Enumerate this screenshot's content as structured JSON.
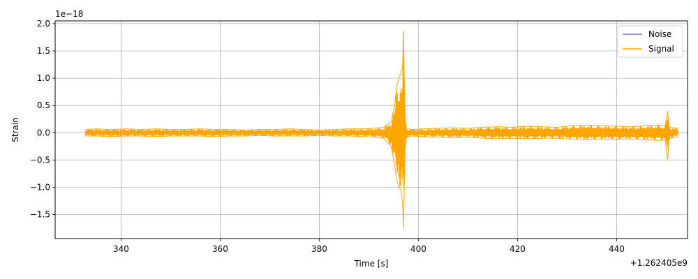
{
  "chart_data": {
    "type": "line",
    "title": "",
    "xlabel": "Time [s]",
    "ylabel": "Strain",
    "x_offset_label": "+1.262405e9",
    "y_scale_label": "1e−18",
    "xlim": [
      326.7,
      454.3
    ],
    "ylim": [
      -1.94,
      2.05
    ],
    "x_ticks": [
      340,
      360,
      380,
      400,
      420,
      440
    ],
    "x_tick_labels": [
      "340",
      "360",
      "380",
      "400",
      "420",
      "440"
    ],
    "y_ticks": [
      -1.5,
      -1.0,
      -0.5,
      0.0,
      0.5,
      1.0,
      1.5,
      2.0
    ],
    "y_tick_labels": [
      "−1.5",
      "−1.0",
      "−0.5",
      "0.0",
      "0.5",
      "1.0",
      "1.5",
      "2.0"
    ],
    "grid": true,
    "legend_position": "top-right",
    "series": [
      {
        "name": "Noise",
        "color": "#7575ff",
        "x": [],
        "y": []
      },
      {
        "name": "Signal",
        "color": "#ffa500",
        "x": [
          332.8,
          335,
          338,
          341,
          344,
          347,
          350,
          353,
          356,
          359,
          362,
          365,
          368,
          371,
          374,
          377,
          380,
          383,
          386,
          389,
          391,
          393,
          394.5,
          395.2,
          395.7,
          396.1,
          396.5,
          396.8,
          397.0,
          397.1,
          397.3,
          397.6,
          398.5,
          401,
          404,
          407,
          410,
          413,
          416,
          419,
          422,
          425,
          428,
          431,
          434,
          437,
          440,
          443,
          446,
          448.5,
          449.8,
          450.3,
          450.5,
          450.8,
          451.5,
          452.4
        ],
        "y_upper": [
          0.06,
          0.07,
          0.06,
          0.07,
          0.06,
          0.07,
          0.06,
          0.06,
          0.07,
          0.06,
          0.06,
          0.05,
          0.06,
          0.06,
          0.07,
          0.06,
          0.05,
          0.06,
          0.07,
          0.07,
          0.08,
          0.1,
          0.2,
          0.5,
          0.9,
          1.0,
          1.1,
          1.2,
          1.87,
          1.2,
          0.3,
          0.08,
          0.06,
          0.07,
          0.08,
          0.09,
          0.08,
          0.1,
          0.11,
          0.1,
          0.12,
          0.11,
          0.1,
          0.13,
          0.14,
          0.13,
          0.12,
          0.11,
          0.13,
          0.14,
          0.12,
          0.4,
          0.15,
          0.1,
          0.09,
          0.08
        ],
        "y_lower": [
          -0.06,
          -0.06,
          -0.07,
          -0.06,
          -0.06,
          -0.07,
          -0.06,
          -0.06,
          -0.06,
          -0.07,
          -0.06,
          -0.06,
          -0.05,
          -0.06,
          -0.06,
          -0.06,
          -0.05,
          -0.06,
          -0.06,
          -0.07,
          -0.08,
          -0.1,
          -0.25,
          -0.6,
          -0.9,
          -1.0,
          -1.05,
          -1.3,
          -1.75,
          -1.2,
          -0.3,
          -0.08,
          -0.06,
          -0.07,
          -0.08,
          -0.09,
          -0.08,
          -0.1,
          -0.11,
          -0.1,
          -0.11,
          -0.1,
          -0.1,
          -0.12,
          -0.13,
          -0.12,
          -0.12,
          -0.12,
          -0.13,
          -0.14,
          -0.13,
          -0.5,
          -0.15,
          -0.1,
          -0.09,
          -0.08
        ]
      }
    ]
  },
  "colors": {
    "signal": "#ffa500",
    "noise": "#7575ff",
    "grid": "#b0b0b0",
    "axes": "#000000"
  }
}
